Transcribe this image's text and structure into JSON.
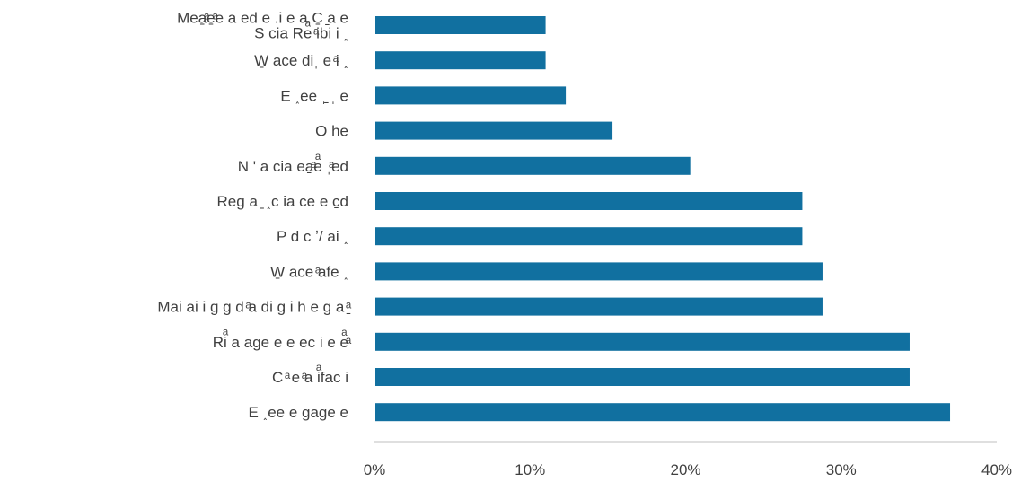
{
  "chart_data": {
    "type": "bar",
    "orientation": "horizontal",
    "categories": [
      [
        "Mea̱ͣe̱ͣe a ed  e .i     e a C̱ ̱a e",
        "S cia Reͣ   ͣibi i ˰"
      ],
      [
        "W̱    ace diˌ e ͣi ˰"
      ],
      [
        "E       ˰ee ˌ̱ ˌ e"
      ],
      [
        "O he"
      ],
      [
        "N  ' a cia  ea̱ͣeͣ   ˌͣed"
      ],
      [
        "Reg  a ̱ ˰c    ia ce e c̱d"
      ],
      [
        "P   d c ʼ/ ai ˰"
      ],
      [
        "W̱    ace ͣafe ˰"
      ],
      [
        "Mai ai i g g   d ͣa di g i h e g  a ̱ͣ"
      ],
      [
        "Riͣ   a age  e  e ec i e eͣͣ"
      ],
      [
        "C  ͣ   e ͣa iͣfac i"
      ],
      [
        "E      ˰ee e gage  e"
      ]
    ],
    "values": [
      11,
      11,
      12.3,
      15.3,
      20.3,
      27.5,
      27.5,
      28.8,
      28.8,
      34.4,
      34.4,
      37
    ],
    "x_ticks": [
      "0%",
      "10%",
      "20%",
      "30%",
      "40%"
    ],
    "xlim": [
      0,
      40
    ],
    "bar_color": "#1170a0",
    "grid": false,
    "legend": "none",
    "title": "",
    "xlabel": "",
    "ylabel": ""
  }
}
